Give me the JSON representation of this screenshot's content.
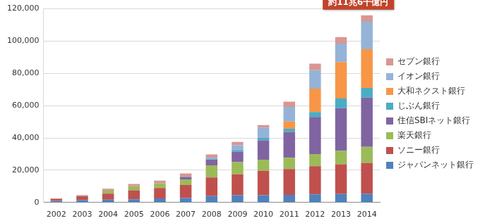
{
  "chart_data": {
    "type": "bar",
    "stacked": true,
    "grid": true,
    "legend": "right",
    "annotation": "約11兆6千億円",
    "categories": [
      "2002",
      "2003",
      "2004",
      "2005",
      "2006",
      "2007",
      "2008",
      "2009",
      "2010",
      "2011",
      "2012",
      "2013",
      "2014"
    ],
    "ylim": [
      0,
      120000
    ],
    "yticks": [
      0,
      {
        "value": 20000,
        "label": "20,000"
      },
      {
        "value": 40000,
        "label": "40,000"
      },
      {
        "value": 60000,
        "label": "60,000"
      },
      {
        "value": 80000,
        "label": "80,000"
      },
      {
        "value": 100000,
        "label": "100,000"
      },
      {
        "value": 120000,
        "label": "120,000"
      }
    ],
    "series": [
      {
        "name": "ジャパンネット銀行",
        "color": "#4f81bd",
        "values": [
          1000,
          1500,
          1800,
          2000,
          2500,
          2800,
          4000,
          4500,
          4500,
          4700,
          5000,
          5200,
          5500
        ]
      },
      {
        "name": "ソニー銀行",
        "color": "#c0504d",
        "values": [
          1200,
          2400,
          3700,
          5500,
          6500,
          8000,
          11500,
          13000,
          15000,
          16000,
          17500,
          18500,
          19000
        ]
      },
      {
        "name": "楽天銀行",
        "color": "#9bbb59",
        "values": [
          0,
          200,
          1800,
          2500,
          2800,
          3500,
          7500,
          7500,
          7000,
          7000,
          7500,
          8300,
          10000
        ]
      },
      {
        "name": "住信SBIネット銀行",
        "color": "#8064a2",
        "values": [
          0,
          0,
          0,
          0,
          0,
          1500,
          3500,
          6500,
          12000,
          16000,
          23000,
          26500,
          30500
        ]
      },
      {
        "name": "じぶん銀行",
        "color": "#4bacc6",
        "values": [
          0,
          0,
          0,
          0,
          0,
          0,
          300,
          1000,
          1500,
          2000,
          3000,
          6000,
          6000
        ]
      },
      {
        "name": "大和ネクスト銀行",
        "color": "#f79646",
        "values": [
          0,
          0,
          0,
          0,
          0,
          0,
          0,
          0,
          0,
          4500,
          14500,
          22500,
          24000
        ]
      },
      {
        "name": "イオン銀行",
        "color": "#95b3d7",
        "values": [
          0,
          0,
          0,
          0,
          0,
          300,
          1000,
          3000,
          6500,
          9000,
          11500,
          11500,
          17000
        ]
      },
      {
        "name": "セブン銀行",
        "color": "#d99694",
        "values": [
          300,
          500,
          1200,
          1500,
          1700,
          1900,
          2000,
          2000,
          1500,
          3300,
          4000,
          4000,
          4000
        ]
      }
    ]
  }
}
